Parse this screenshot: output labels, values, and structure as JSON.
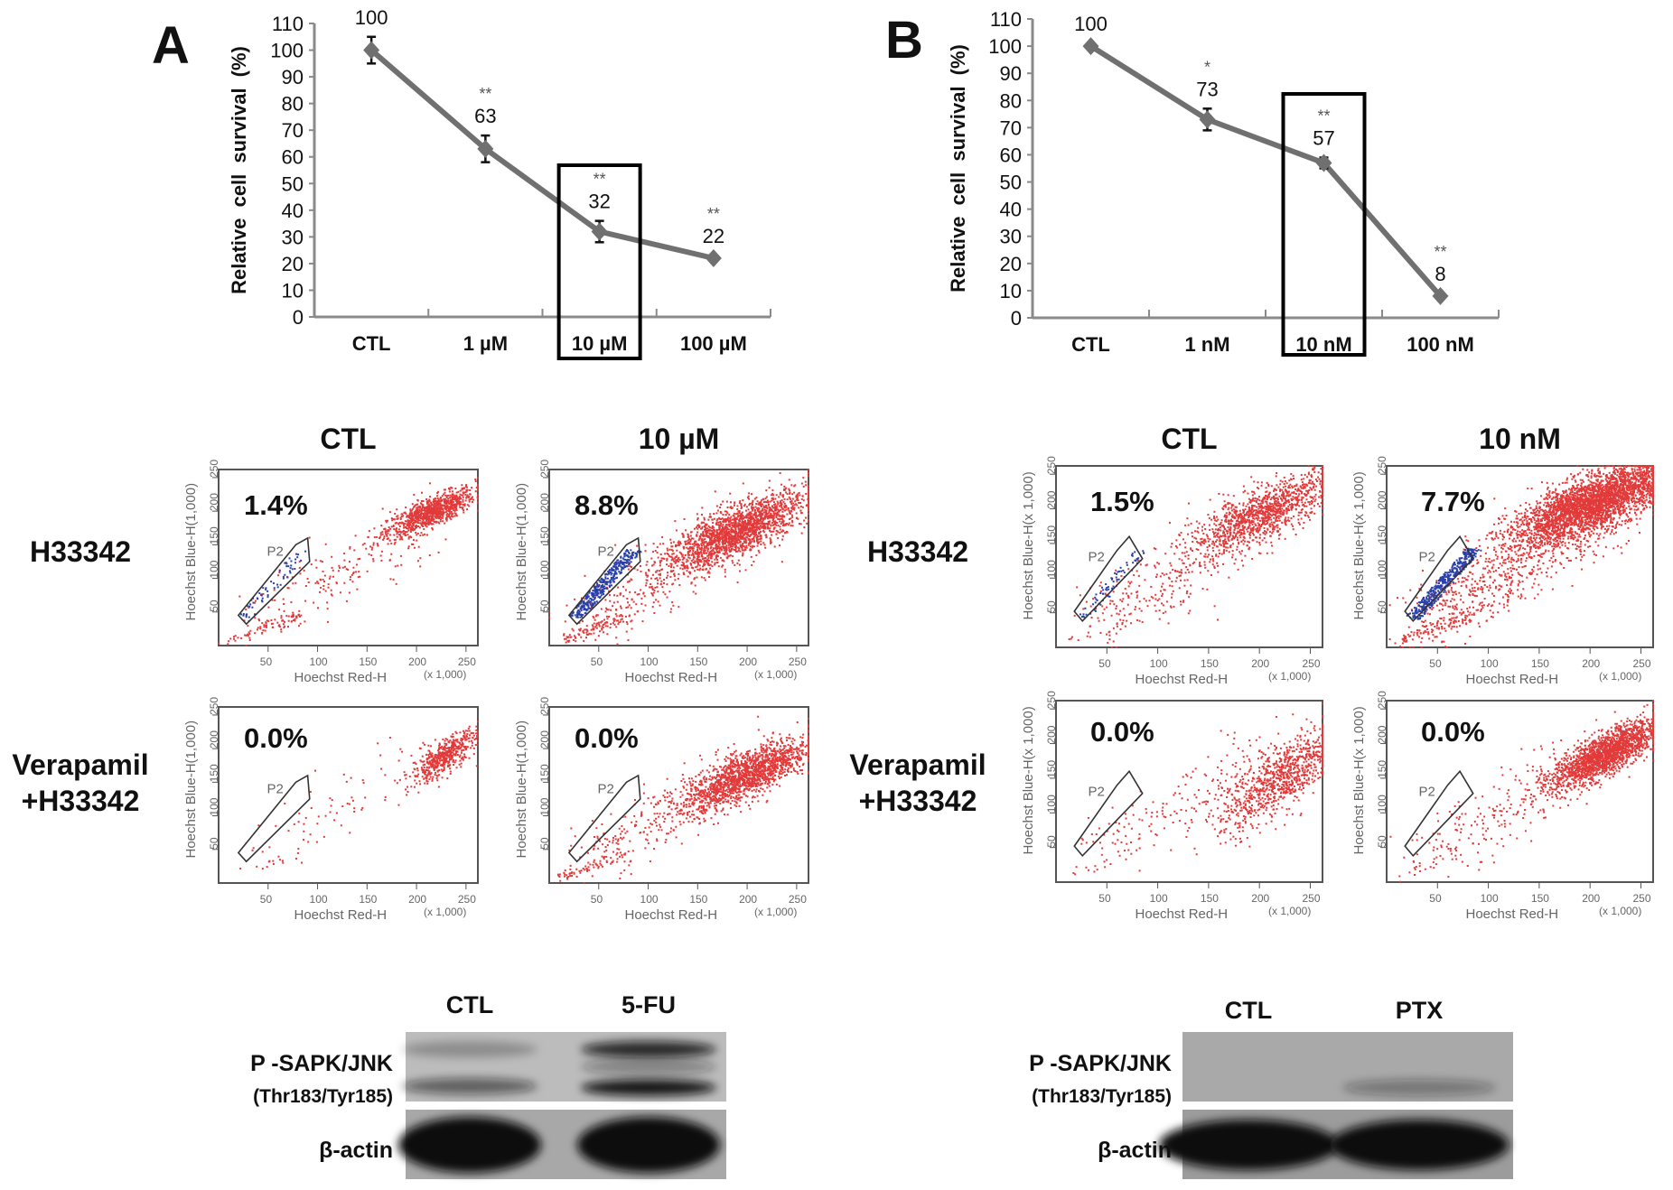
{
  "panels": [
    {
      "letter": "A",
      "flow": {
        "columns": [
          "CTL",
          "10 µM"
        ],
        "rows": [
          [
            "H33342"
          ],
          [
            "Verapamil",
            "+H33342"
          ]
        ],
        "percentages": [
          [
            "1.4%",
            "8.8%"
          ],
          [
            "0.0%",
            "0.0%"
          ]
        ],
        "gate_label": "P2",
        "x_axis_label": "Hoechst Red-H",
        "y_axis_label": "Hoechst Blue-H(1,000)",
        "scale_label": "(x 1,000)",
        "ticks": [
          "50",
          "100",
          "150",
          "200",
          "250"
        ]
      },
      "western": {
        "lanes": [
          "CTL",
          "5-FU"
        ],
        "target_label": "P -SAPK/JNK",
        "target_sublabel": "(Thr183/Tyr185)",
        "loading_label": "β-actin"
      }
    },
    {
      "letter": "B",
      "flow": {
        "columns": [
          "CTL",
          "10 nM"
        ],
        "rows": [
          [
            "H33342"
          ],
          [
            "Verapamil",
            "+H33342"
          ]
        ],
        "percentages": [
          [
            "1.5%",
            "7.7%"
          ],
          [
            "0.0%",
            "0.0%"
          ]
        ],
        "gate_label": "P2",
        "x_axis_label": "Hoechst Red-H",
        "y_axis_label": "Hoechst Blue-H(x 1,000)",
        "scale_label": "(x 1,000)",
        "ticks": [
          "50",
          "100",
          "150",
          "200",
          "250"
        ]
      },
      "western": {
        "lanes": [
          "CTL",
          "PTX"
        ],
        "target_label": "P -SAPK/JNK",
        "target_sublabel": "(Thr183/Tyr185)",
        "loading_label": "β-actin"
      }
    }
  ],
  "chart_data": [
    {
      "type": "line",
      "panel": "A",
      "categories": [
        "CTL",
        "1 µM",
        "10 µM",
        "100 µM"
      ],
      "values": [
        100,
        63,
        32,
        22
      ],
      "errors": [
        5,
        5,
        4,
        1
      ],
      "value_labels": [
        "100",
        "63",
        "32",
        "22"
      ],
      "significance": [
        "",
        "**",
        "**",
        "**"
      ],
      "highlighted_category": "10 µM",
      "ylabel": "Relative  cell  survival (%)",
      "xlabel": "",
      "ylim": [
        0,
        110
      ],
      "yticks": [
        "0",
        "10",
        "20",
        "30",
        "40",
        "50",
        "60",
        "70",
        "80",
        "90",
        "100",
        "110"
      ],
      "line_color": "#707070",
      "grid": false
    },
    {
      "type": "line",
      "panel": "B",
      "categories": [
        "CTL",
        "1 nM",
        "10 nM",
        "100 nM"
      ],
      "values": [
        100,
        73,
        57,
        8
      ],
      "errors": [
        1,
        4,
        2,
        1
      ],
      "value_labels": [
        "100",
        "73",
        "57",
        "8"
      ],
      "significance": [
        "",
        "*",
        "**",
        "**"
      ],
      "highlighted_category": "10 nM",
      "ylabel": "Relative  cell  survival  (%)",
      "xlabel": "",
      "ylim": [
        0,
        110
      ],
      "yticks": [
        "0",
        "10",
        "20",
        "30",
        "40",
        "50",
        "60",
        "70",
        "80",
        "90",
        "100",
        "110"
      ],
      "line_color": "#707070",
      "grid": false
    }
  ],
  "colors": {
    "dots_main": "#e23a3a",
    "dots_gate": "#2a3fa8",
    "blot_background": "#b9b9b9"
  }
}
